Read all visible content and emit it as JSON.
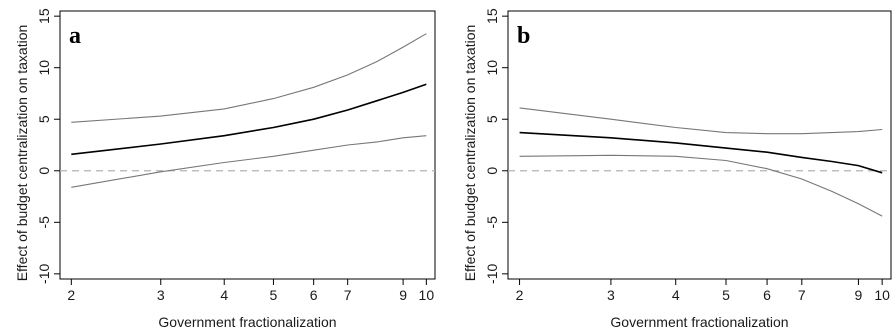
{
  "chart_data": [
    {
      "type": "line",
      "panel_label": "a",
      "xlabel": "Government fractionalization",
      "ylabel": "Effect of budget centralization on taxation",
      "x_scale": "log",
      "xlim": [
        1.9,
        10.4
      ],
      "ylim": [
        -10.5,
        15.5
      ],
      "x_ticks": [
        2,
        3,
        4,
        5,
        6,
        7,
        9,
        10
      ],
      "y_ticks": [
        -10,
        -5,
        0,
        5,
        10,
        15
      ],
      "reference_line": {
        "y": 0,
        "style": "dashed",
        "color": "#b3b3b3"
      },
      "grid": false,
      "series": [
        {
          "role": "estimate",
          "color": "#000000",
          "x": [
            2,
            3,
            4,
            5,
            6,
            7,
            8,
            9,
            10
          ],
          "values": [
            1.6,
            2.6,
            3.4,
            4.2,
            5.0,
            5.9,
            6.8,
            7.6,
            8.4
          ]
        },
        {
          "role": "upper-bound",
          "color": "#777777",
          "x": [
            2,
            3,
            4,
            5,
            6,
            7,
            8,
            9,
            10
          ],
          "values": [
            4.7,
            5.3,
            6.0,
            7.0,
            8.1,
            9.3,
            10.6,
            12.0,
            13.3
          ]
        },
        {
          "role": "lower-bound",
          "color": "#777777",
          "x": [
            2,
            3,
            4,
            5,
            6,
            7,
            8,
            9,
            10
          ],
          "values": [
            -1.6,
            -0.1,
            0.8,
            1.4,
            2.0,
            2.5,
            2.8,
            3.2,
            3.4
          ]
        }
      ]
    },
    {
      "type": "line",
      "panel_label": "b",
      "xlabel": "Government fractionalization",
      "ylabel": "Effect of budget centralization on taxation",
      "x_scale": "log",
      "xlim": [
        1.9,
        10.4
      ],
      "ylim": [
        -10.5,
        15.5
      ],
      "x_ticks": [
        2,
        3,
        4,
        5,
        6,
        7,
        9,
        10
      ],
      "y_ticks": [
        -10,
        -5,
        0,
        5,
        10,
        15
      ],
      "reference_line": {
        "y": 0,
        "style": "dashed",
        "color": "#b3b3b3"
      },
      "grid": false,
      "series": [
        {
          "role": "estimate",
          "color": "#000000",
          "x": [
            2,
            3,
            4,
            5,
            6,
            7,
            8,
            9,
            10
          ],
          "values": [
            3.7,
            3.2,
            2.7,
            2.2,
            1.8,
            1.3,
            0.9,
            0.5,
            -0.2
          ]
        },
        {
          "role": "upper-bound",
          "color": "#777777",
          "x": [
            2,
            3,
            4,
            5,
            6,
            7,
            8,
            9,
            10
          ],
          "values": [
            6.1,
            5.0,
            4.2,
            3.7,
            3.6,
            3.6,
            3.7,
            3.8,
            4.0
          ]
        },
        {
          "role": "lower-bound",
          "color": "#777777",
          "x": [
            2,
            3,
            4,
            5,
            6,
            7,
            8,
            9,
            10
          ],
          "values": [
            1.4,
            1.5,
            1.4,
            1.0,
            0.2,
            -0.8,
            -2.0,
            -3.2,
            -4.4
          ]
        }
      ]
    }
  ]
}
